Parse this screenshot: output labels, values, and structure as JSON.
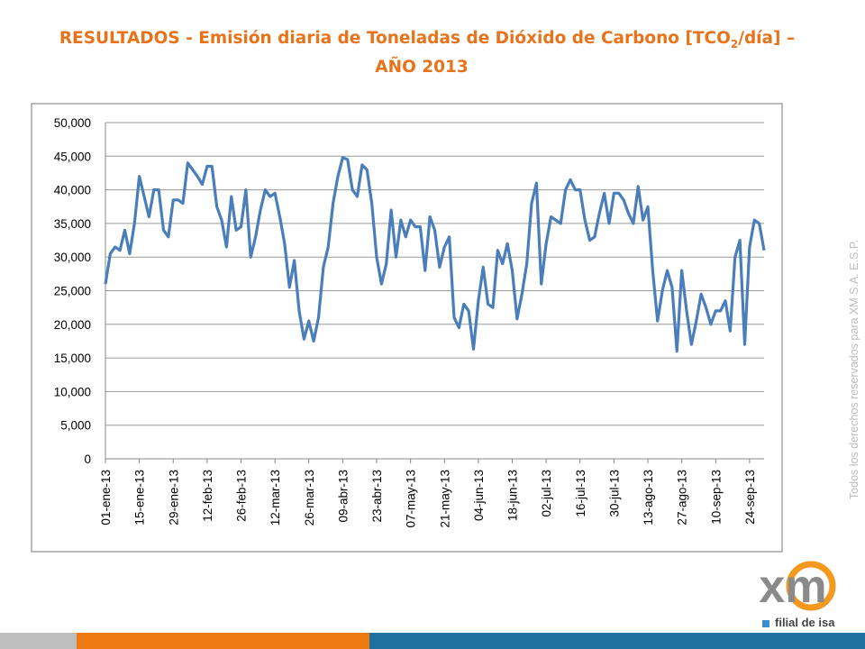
{
  "chart_data": {
    "type": "line",
    "title": [
      "RESULTADOS - Emisión diaria de Toneladas de Dióxido de Carbono [TCO",
      "2",
      "/día] –",
      "AÑO 2013"
    ],
    "categories": [
      "01-ene-13",
      null,
      null,
      null,
      null,
      null,
      null,
      "15-ene-13",
      null,
      null,
      null,
      null,
      null,
      null,
      "29-ene-13",
      null,
      null,
      null,
      null,
      null,
      null,
      "12-feb-13",
      null,
      null,
      null,
      null,
      null,
      null,
      "26-feb-13",
      null,
      null,
      null,
      null,
      null,
      null,
      "12-mar-13",
      null,
      null,
      null,
      null,
      null,
      null,
      "26-mar-13",
      null,
      null,
      null,
      null,
      null,
      null,
      "09-abr-13",
      null,
      null,
      null,
      null,
      null,
      null,
      "23-abr-13",
      null,
      null,
      null,
      null,
      null,
      null,
      "07-may-13",
      null,
      null,
      null,
      null,
      null,
      null,
      "21-may-13",
      null,
      null,
      null,
      null,
      null,
      null,
      "04-jun-13",
      null,
      null,
      null,
      null,
      null,
      null,
      "18-jun-13",
      null,
      null,
      null,
      null,
      null,
      null,
      "02-jul-13",
      null,
      null,
      null,
      null,
      null,
      null,
      "16-jul-13",
      null,
      null,
      null,
      null,
      null,
      null,
      "30-jul-13",
      null,
      null,
      null,
      null,
      null,
      null,
      "13-ago-13",
      null,
      null,
      null,
      null,
      null,
      null,
      "27-ago-13",
      null,
      null,
      null,
      null,
      null,
      null,
      "10-sep-13",
      null,
      null,
      null,
      null,
      null,
      null,
      "24-sep-13",
      null,
      null,
      null
    ],
    "series": [
      {
        "color": "#4a7ebb",
        "values": [
          26000,
          30500,
          31500,
          31000,
          34000,
          30500,
          35000,
          42000,
          39000,
          36000,
          40000,
          40000,
          34000,
          33000,
          38500,
          38500,
          38000,
          44000,
          43000,
          42000,
          40800,
          43500,
          43500,
          37500,
          35500,
          31500,
          39000,
          34000,
          34500,
          40000,
          30000,
          33000,
          37000,
          40000,
          39000,
          39500,
          36000,
          32000,
          25500,
          29500,
          22000,
          17800,
          20500,
          17500,
          21000,
          28500,
          31500,
          38000,
          42000,
          44800,
          44500,
          40000,
          39000,
          43700,
          43000,
          38000,
          30000,
          26000,
          29000,
          37000,
          30000,
          35500,
          33000,
          35500,
          34500,
          34500,
          28000,
          36000,
          34000,
          28500,
          31500,
          33000,
          21000,
          19500,
          23000,
          22000,
          16300,
          23500,
          28500,
          23000,
          22500,
          31000,
          29000,
          32000,
          28000,
          20800,
          24500,
          29000,
          38000,
          41000,
          26000,
          32000,
          36000,
          35500,
          35000,
          40000,
          41500,
          40000,
          40000,
          35500,
          32500,
          33000,
          36500,
          39500,
          35000,
          39500,
          39500,
          38500,
          36500,
          35000,
          40500,
          35500,
          37500,
          28000,
          20500,
          25000,
          28000,
          25500,
          16000,
          28000,
          22000,
          17000,
          20500,
          24500,
          22500,
          20000,
          22000,
          22000,
          23500,
          19000,
          30000,
          32500,
          17000,
          31500,
          35500,
          35000,
          31000
        ]
      }
    ],
    "ylim": [
      0,
      50000
    ],
    "yticks": [
      0,
      {
        "value": 5000,
        "label": "5,000"
      },
      {
        "value": 10000,
        "label": "10,000"
      },
      {
        "value": 15000,
        "label": "15,000"
      },
      {
        "value": 20000,
        "label": "20,000"
      },
      {
        "value": 25000,
        "label": "25,000"
      },
      {
        "value": 30000,
        "label": "30,000"
      },
      {
        "value": 35000,
        "label": "35,000"
      },
      {
        "value": 40000,
        "label": "40,000"
      },
      {
        "value": 45000,
        "label": "45,000"
      },
      {
        "value": 50000,
        "label": "50,000"
      }
    ],
    "grid": true
  },
  "watermark": "Todos los derechos reservados para XM S.A. E.S.P.",
  "logo": {
    "mark": "xm",
    "tagline": "filial de isa"
  }
}
